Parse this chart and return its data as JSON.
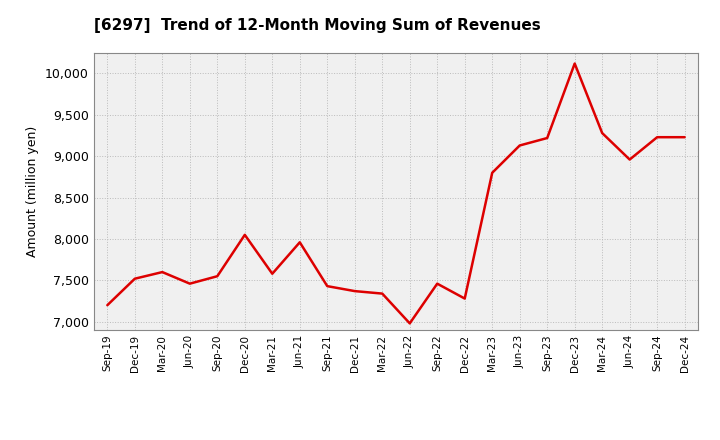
{
  "title": "[6297]  Trend of 12-Month Moving Sum of Revenues",
  "ylabel": "Amount (million yen)",
  "line_color": "#DD0000",
  "plot_bg_color": "#F0F0F0",
  "fig_bg_color": "#FFFFFF",
  "grid_color": "#BBBBBB",
  "ylim": [
    6900,
    10250
  ],
  "yticks": [
    7000,
    7500,
    8000,
    8500,
    9000,
    9500,
    10000
  ],
  "x_labels": [
    "Sep-19",
    "Dec-19",
    "Mar-20",
    "Jun-20",
    "Sep-20",
    "Dec-20",
    "Mar-21",
    "Jun-21",
    "Sep-21",
    "Dec-21",
    "Mar-22",
    "Jun-22",
    "Sep-22",
    "Dec-22",
    "Mar-23",
    "Jun-23",
    "Sep-23",
    "Dec-23",
    "Mar-24",
    "Jun-24",
    "Sep-24",
    "Dec-24"
  ],
  "y_values": [
    7200,
    7520,
    7600,
    7460,
    7550,
    8050,
    7580,
    7960,
    7430,
    7370,
    7340,
    6980,
    7460,
    7280,
    8800,
    9130,
    9220,
    10120,
    9280,
    8960,
    9230,
    9230
  ]
}
